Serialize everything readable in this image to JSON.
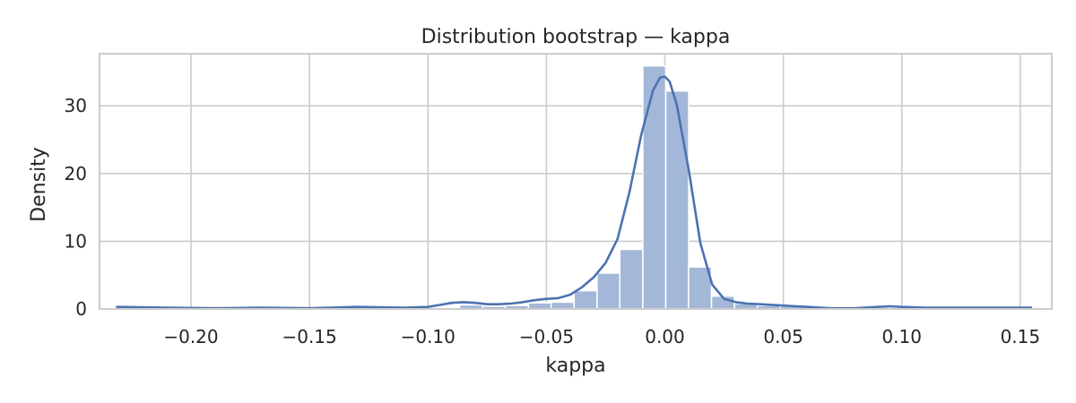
{
  "chart_data": {
    "type": "histogram",
    "title": "Distribution bootstrap — kappa",
    "xlabel": "kappa",
    "ylabel": "Density",
    "xlim": [
      -0.2386,
      0.1633
    ],
    "ylim": [
      0,
      37.7
    ],
    "x_ticks": [
      -0.2,
      -0.15,
      -0.1,
      -0.05,
      0.0,
      0.05,
      0.1,
      0.15
    ],
    "x_tick_labels": [
      "−0.20",
      "−0.15",
      "−0.10",
      "−0.05",
      "0.00",
      "0.05",
      "0.10",
      "0.15"
    ],
    "y_ticks": [
      0,
      10,
      20,
      30
    ],
    "y_tick_labels": [
      "0",
      "10",
      "20",
      "30"
    ],
    "grid": true,
    "bin_width": 0.00966,
    "bins": [
      {
        "left": -0.2316,
        "value": 0.1
      },
      {
        "left": -0.222,
        "value": 0.0
      },
      {
        "left": -0.2123,
        "value": 0.0
      },
      {
        "left": -0.2026,
        "value": 0.0
      },
      {
        "left": -0.193,
        "value": 0.0
      },
      {
        "left": -0.1833,
        "value": 0.0
      },
      {
        "left": -0.1736,
        "value": 0.0
      },
      {
        "left": -0.164,
        "value": 0.0
      },
      {
        "left": -0.1543,
        "value": 0.0
      },
      {
        "left": -0.1446,
        "value": 0.0
      },
      {
        "left": -0.135,
        "value": 0.1
      },
      {
        "left": -0.1253,
        "value": 0.1
      },
      {
        "left": -0.1156,
        "value": 0.0
      },
      {
        "left": -0.106,
        "value": 0.0
      },
      {
        "left": -0.0963,
        "value": 0.2
      },
      {
        "left": -0.0866,
        "value": 0.6
      },
      {
        "left": -0.077,
        "value": 0.4
      },
      {
        "left": -0.0673,
        "value": 0.5
      },
      {
        "left": -0.0576,
        "value": 0.9
      },
      {
        "left": -0.048,
        "value": 1.0
      },
      {
        "left": -0.0383,
        "value": 2.7
      },
      {
        "left": -0.0286,
        "value": 5.3
      },
      {
        "left": -0.019,
        "value": 8.8
      },
      {
        "left": -0.0093,
        "value": 35.9
      },
      {
        "left": 0.0004,
        "value": 32.2
      },
      {
        "left": 0.01,
        "value": 6.2
      },
      {
        "left": 0.0197,
        "value": 1.9
      },
      {
        "left": 0.0294,
        "value": 0.8
      },
      {
        "left": 0.039,
        "value": 0.5
      },
      {
        "left": 0.0487,
        "value": 0.4
      },
      {
        "left": 0.0584,
        "value": 0.1
      },
      {
        "left": 0.068,
        "value": 0.0
      },
      {
        "left": 0.0777,
        "value": 0.0
      },
      {
        "left": 0.0874,
        "value": 0.1
      },
      {
        "left": 0.097,
        "value": 0.1
      },
      {
        "left": 0.1067,
        "value": 0.0
      },
      {
        "left": 0.1164,
        "value": 0.0
      },
      {
        "left": 0.126,
        "value": 0.1
      },
      {
        "left": 0.1357,
        "value": 0.0
      },
      {
        "left": 0.1454,
        "value": 0.1
      }
    ],
    "kde": {
      "x": [
        -0.2316,
        -0.21,
        -0.19,
        -0.17,
        -0.15,
        -0.13,
        -0.11,
        -0.1,
        -0.095,
        -0.09,
        -0.085,
        -0.08,
        -0.075,
        -0.07,
        -0.065,
        -0.06,
        -0.055,
        -0.05,
        -0.045,
        -0.04,
        -0.035,
        -0.03,
        -0.025,
        -0.02,
        -0.015,
        -0.01,
        -0.005,
        -0.002,
        0.0,
        0.002,
        0.005,
        0.01,
        0.015,
        0.02,
        0.025,
        0.03,
        0.035,
        0.04,
        0.05,
        0.06,
        0.07,
        0.08,
        0.09,
        0.095,
        0.1,
        0.11,
        0.13,
        0.155
      ],
      "y": [
        0.3,
        0.2,
        0.1,
        0.2,
        0.1,
        0.3,
        0.2,
        0.3,
        0.6,
        0.9,
        1.0,
        0.9,
        0.7,
        0.7,
        0.8,
        1.0,
        1.3,
        1.5,
        1.6,
        2.1,
        3.2,
        4.7,
        6.8,
        10.3,
        17.2,
        25.7,
        32.3,
        34.2,
        34.3,
        33.6,
        30.2,
        20.7,
        9.7,
        3.6,
        1.5,
        1.0,
        0.8,
        0.7,
        0.5,
        0.3,
        0.1,
        0.1,
        0.3,
        0.4,
        0.3,
        0.2,
        0.2,
        0.2
      ]
    }
  }
}
